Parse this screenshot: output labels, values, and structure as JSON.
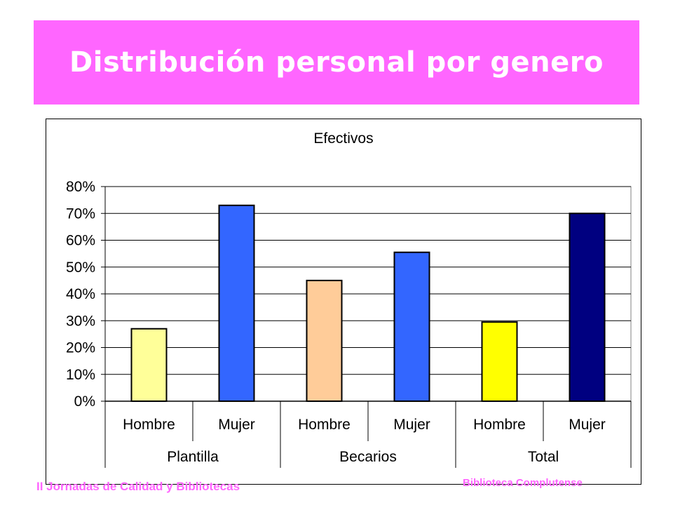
{
  "slide": {
    "title": "Distribución personal por genero",
    "footer_left": "II Jornadas de Calidad y Bibliotecas",
    "footer_right": "Biblioteca Complutense"
  },
  "colors": {
    "banner": "#ff66ff",
    "title_text": "#ffffff",
    "footer_text": "#ff66ff"
  },
  "chart_data": {
    "type": "bar",
    "title": "Efectivos",
    "xlabel": "",
    "ylabel": "",
    "ylim": [
      0,
      0.8
    ],
    "yticks": [
      "0%",
      "10%",
      "20%",
      "30%",
      "40%",
      "50%",
      "60%",
      "70%",
      "80%"
    ],
    "grid": true,
    "legend": "none",
    "groups": [
      "Plantilla",
      "Becarios",
      "Total"
    ],
    "categories": [
      "Hombre",
      "Mujer",
      "Hombre",
      "Mujer",
      "Hombre",
      "Mujer"
    ],
    "values": [
      0.27,
      0.73,
      0.45,
      0.555,
      0.295,
      0.7
    ],
    "bar_colors": [
      "#ffff99",
      "#3366ff",
      "#ffcc99",
      "#3366ff",
      "#ffff00",
      "#000080"
    ]
  }
}
